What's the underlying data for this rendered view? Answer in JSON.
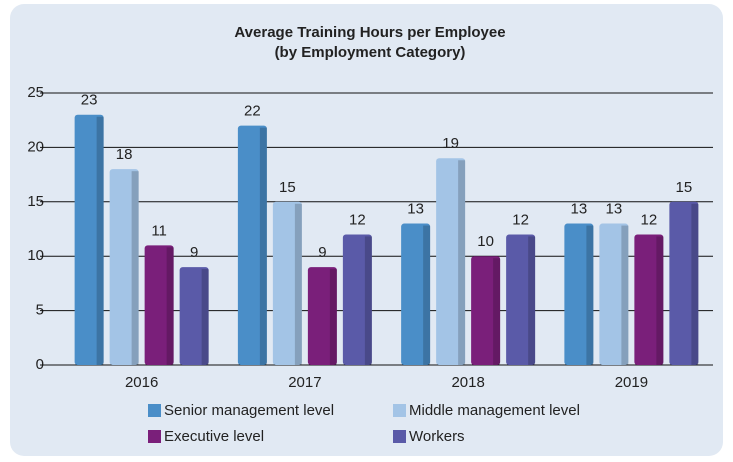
{
  "chart_data": {
    "type": "bar",
    "title": "Average Training Hours per Employee",
    "subtitle": "(by Employment Category)",
    "categories": [
      "2016",
      "2017",
      "2018",
      "2019"
    ],
    "series": [
      {
        "name": "Senior management level",
        "color": "#4a8ec8",
        "values": [
          23,
          22,
          13,
          13
        ]
      },
      {
        "name": "Middle management level",
        "color": "#a3c4e6",
        "values": [
          18,
          15,
          19,
          13
        ]
      },
      {
        "name": "Executive level",
        "color": "#7a1f7a",
        "values": [
          11,
          9,
          10,
          12
        ]
      },
      {
        "name": "Workers",
        "color": "#5a5aa8",
        "values": [
          9,
          12,
          12,
          15
        ]
      }
    ],
    "ylim": [
      0,
      25
    ],
    "yticks": [
      0,
      5,
      10,
      15,
      20,
      25
    ],
    "grid": true
  }
}
